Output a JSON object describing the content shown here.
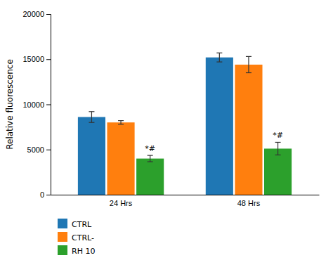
{
  "chart_data": {
    "type": "bar",
    "categories": [
      "24 Hrs",
      "48 Hrs"
    ],
    "series": [
      {
        "name": "CTRL",
        "values": [
          8600,
          15200
        ],
        "errors": [
          600,
          500
        ]
      },
      {
        "name": "CTRL-",
        "values": [
          8000,
          14400
        ],
        "errors": [
          200,
          900
        ]
      },
      {
        "name": "RH 10",
        "values": [
          4000,
          5100
        ],
        "errors": [
          350,
          700
        ],
        "annotations": [
          "*#",
          "*#"
        ]
      }
    ],
    "ylabel": "Relative fluorescence",
    "ylim": [
      0,
      20000
    ],
    "yticks": [
      0,
      5000,
      10000,
      15000,
      20000
    ],
    "grid": false,
    "legend": "bottom"
  }
}
